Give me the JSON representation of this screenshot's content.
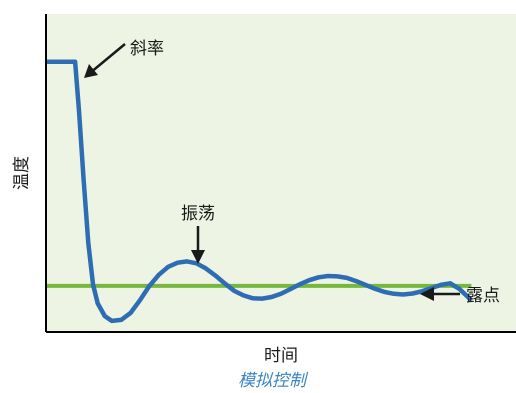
{
  "chart_data": {
    "type": "line",
    "xlabel": "时间",
    "ylabel": "温度",
    "caption": "模拟控制",
    "xlim": [
      0,
      100
    ],
    "ylim": [
      0,
      100
    ],
    "grid": false,
    "series": [
      {
        "name": "",
        "color": "#2e6db3",
        "x": [
          0,
          6.2,
          7.0,
          8.0,
          9.0,
          10.0,
          11.0,
          12.5,
          14.0,
          16.0,
          18.0,
          20.0,
          22.0,
          24.0,
          26.0,
          28.0,
          30.0,
          32.0,
          34.0,
          36.0,
          38.0,
          40.0,
          42.0,
          44.0,
          46.0,
          48.0,
          50.0,
          52.0,
          54.0,
          56.0,
          58.0,
          60.0,
          62.0,
          64.0,
          66.0,
          68.0,
          70.0,
          72.0,
          74.0,
          76.0,
          78.0,
          80.0,
          82.0,
          84.0,
          86.0,
          88.0,
          90.5
        ],
        "y": [
          85.0,
          85.0,
          70.0,
          48.0,
          28.0,
          15.0,
          9.0,
          5.0,
          3.5,
          3.8,
          6.0,
          10.0,
          14.5,
          18.0,
          20.5,
          21.8,
          22.2,
          21.6,
          20.0,
          17.8,
          15.3,
          13.0,
          11.5,
          10.6,
          10.5,
          11.0,
          12.0,
          13.5,
          15.0,
          16.3,
          17.2,
          17.6,
          17.5,
          17.0,
          16.0,
          14.8,
          13.6,
          12.6,
          12.0,
          11.8,
          12.1,
          12.8,
          13.8,
          14.8,
          15.3,
          13.5,
          10.0
        ]
      },
      {
        "name": "",
        "color": "#76b83e",
        "x": [
          0,
          90.5
        ],
        "y": [
          14.5,
          14.5
        ]
      }
    ],
    "annotations": [
      {
        "text": "斜率",
        "x": 9,
        "y": 85
      },
      {
        "text": "振荡",
        "x": 32,
        "y": 22.2
      },
      {
        "text": "露点",
        "x": 90.5,
        "y": 14.5
      }
    ]
  }
}
